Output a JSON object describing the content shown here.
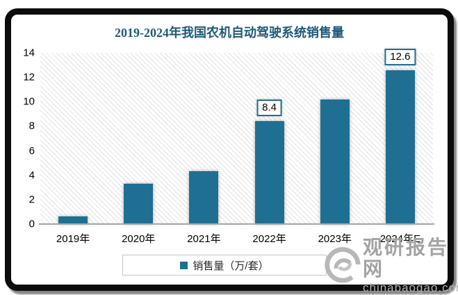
{
  "chart_data": {
    "type": "bar",
    "title": "2019-2024年我国农机自动驾驶系统销售量",
    "categories": [
      "2019年",
      "2020年",
      "2021年",
      "2022年",
      "2023年",
      "2024年E"
    ],
    "values": [
      0.6,
      3.3,
      4.3,
      8.4,
      10.2,
      12.6
    ],
    "bar_labels": [
      null,
      null,
      null,
      "8.4",
      null,
      "12.6"
    ],
    "legend": "销售量（万/套）",
    "legend_position": "bottom",
    "ylim": [
      0,
      14
    ],
    "yticks": [
      0,
      2,
      4,
      6,
      8,
      10,
      12,
      14
    ],
    "grid": false,
    "colors": {
      "bar": "#1f6f93",
      "title": "#1e5a78",
      "axis_line": "#a6a6a6",
      "frame": "#0c0c0c"
    }
  },
  "watermark": {
    "brand": "观研报告网",
    "domain": "chinabaogao.com"
  }
}
